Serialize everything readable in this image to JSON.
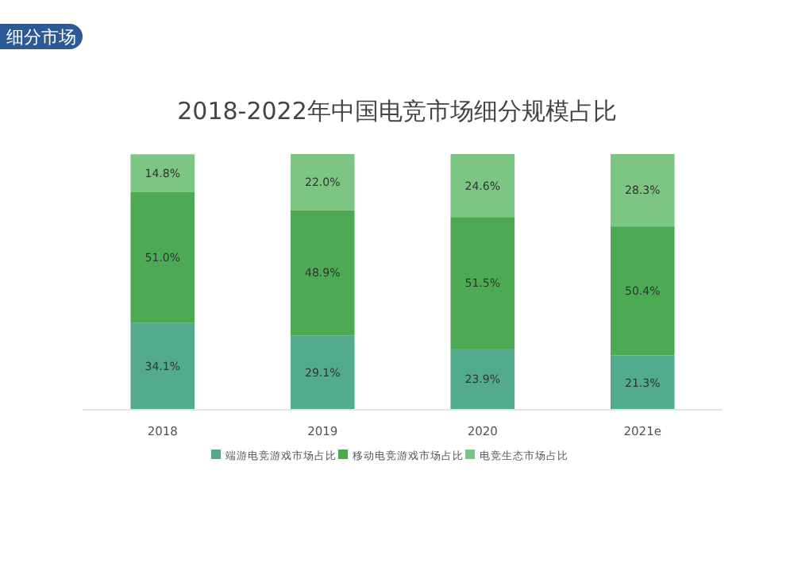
{
  "chart_data": {
    "type": "bar",
    "title": "2018-2022年中国电竞市场细分规模占比",
    "annotations": [
      "细分市场"
    ],
    "categories": [
      "2018",
      "2019",
      "2020",
      "2021e"
    ],
    "stacked": true,
    "legend": "bottom",
    "grid": false,
    "series": [
      {
        "name": "端游电竞游戏市场占比",
        "color": "#52ab8c",
        "values": [
          34.1,
          29.1,
          23.9,
          21.3
        ],
        "value_labels": [
          "34.1%",
          "29.1%",
          "23.9%",
          "21.3%"
        ]
      },
      {
        "name": "移动电竞游戏市场占比",
        "color": "#4caa55",
        "values": [
          51.0,
          48.9,
          51.5,
          50.4
        ],
        "value_labels": [
          "51.0%",
          "48.9%",
          "51.5%",
          "50.4%"
        ]
      },
      {
        "name": "电竞生态市场占比",
        "color": "#7cc583",
        "values": [
          14.8,
          22.0,
          24.6,
          28.3
        ],
        "value_labels": [
          "14.8%",
          "22.0%",
          "24.6%",
          "28.3%"
        ]
      }
    ]
  }
}
